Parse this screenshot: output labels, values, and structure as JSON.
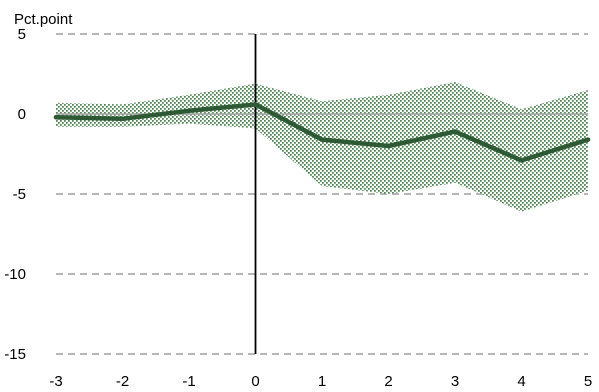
{
  "chart_data": {
    "type": "line",
    "title": "",
    "ylabel": "Pct.point",
    "xlabel": "",
    "x": [
      -3,
      -2,
      -1,
      0,
      1,
      2,
      3,
      4,
      5
    ],
    "xlim": [
      -3,
      5
    ],
    "ylim": [
      -15,
      5
    ],
    "x_ticks": [
      "-3",
      "-2",
      "-1",
      "0",
      "1",
      "2",
      "3",
      "4",
      "5"
    ],
    "y_ticks": [
      "5",
      "0",
      "-5",
      "-10",
      "-15"
    ],
    "y_tick_values": [
      5,
      0,
      -5,
      -10,
      -15
    ],
    "grid": true,
    "vertical_reference_line_at_x": 0,
    "series": [
      {
        "values": [
          -0.2,
          -0.3,
          0.2,
          0.6,
          -1.6,
          -2.0,
          -1.1,
          -2.9,
          -1.6
        ],
        "color": "#2d5a35"
      }
    ],
    "confidence_band": {
      "upper": [
        0.7,
        0.6,
        1.2,
        1.9,
        0.8,
        1.2,
        2.0,
        0.3,
        1.5
      ],
      "lower": [
        -0.8,
        -0.8,
        -0.6,
        -0.9,
        -4.5,
        -5.0,
        -4.3,
        -6.1,
        -4.8
      ],
      "color": "#4e8a52"
    }
  }
}
